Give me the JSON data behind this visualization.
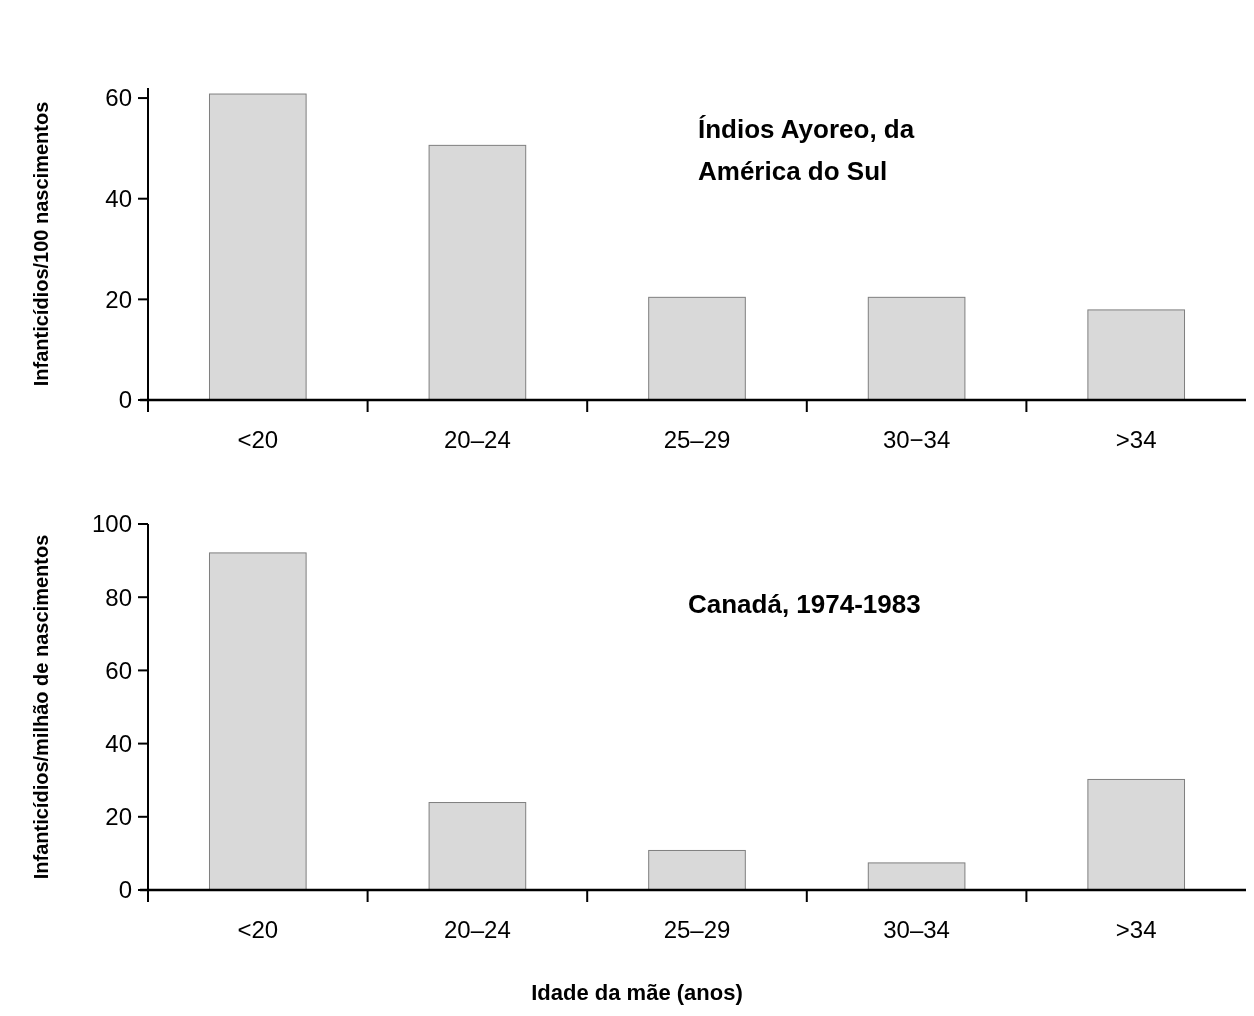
{
  "chart_data": [
    {
      "type": "bar",
      "ylabel": "Infanticídios/100 nascimentos",
      "annotations": [
        "Índios Ayoreo, da\nAmérica do Sul"
      ],
      "categories": [
        "<20",
        "20–24",
        "25–29",
        "30−34",
        ">34"
      ],
      "values": [
        60.8,
        50.6,
        20.4,
        20.4,
        17.9
      ],
      "color": "#d9d9d9",
      "ylim": [
        0,
        62
      ],
      "yticks": [
        0,
        20,
        40,
        60
      ],
      "grid": false
    },
    {
      "type": "bar",
      "ylabel": "Infanticídios/milhão de nascimentos",
      "xlabel": "Idade da mãe (anos)",
      "annotations": [
        "Canadá, 1974-1983"
      ],
      "categories": [
        "<20",
        "20–24",
        "25–29",
        "30–34",
        ">34"
      ],
      "values": [
        92.1,
        23.9,
        10.8,
        7.4,
        30.2
      ],
      "color": "#d9d9d9",
      "ylim": [
        0,
        100
      ],
      "yticks": [
        0,
        20,
        40,
        60,
        80,
        100
      ],
      "grid": false
    }
  ]
}
